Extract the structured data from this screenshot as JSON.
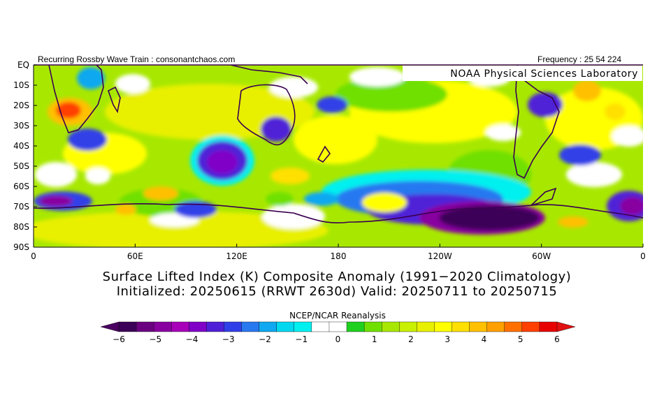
{
  "header": {
    "left": "Recurring Rossby Wave Train : consonantchaos.com",
    "right": "Frequency : 25 54 224",
    "credit": "NOAA Physical Sciences Laboratory"
  },
  "map": {
    "lat_labels": [
      "EQ",
      "10S",
      "20S",
      "30S",
      "40S",
      "50S",
      "60S",
      "70S",
      "80S",
      "90S"
    ],
    "lon_labels": [
      "0",
      "60E",
      "120E",
      "180",
      "120W",
      "60W",
      "0"
    ],
    "lat_range": [
      -90,
      0
    ],
    "lon_range": [
      0,
      360
    ]
  },
  "title": {
    "line1": "Surface Lifted Index (K) Composite Anomaly (1991−2020 Climatology)",
    "line2": "Initialized: 20250615 (RRWT 2630d) Valid: 20250711 to 20250715"
  },
  "colorbar": {
    "label": "NCEP/NCAR Reanalysis",
    "ticks": [
      "−6",
      "−5",
      "−4",
      "−3",
      "−2",
      "−1",
      "0",
      "1",
      "2",
      "3",
      "4",
      "5",
      "6"
    ],
    "colors": [
      "#3c0058",
      "#6a0080",
      "#8800a0",
      "#a800b8",
      "#8000c8",
      "#5020d8",
      "#3040e8",
      "#2878f0",
      "#10a8f0",
      "#00d8f0",
      "#00f0f0",
      "#ffffff",
      "#ffffff",
      "#20d020",
      "#70e000",
      "#a8e800",
      "#c8f000",
      "#e8f000",
      "#ffff00",
      "#ffe000",
      "#ffc000",
      "#ffa000",
      "#ff7000",
      "#ff4000",
      "#e80000"
    ],
    "arrow_left": "#4a0060",
    "arrow_right": "#e01010"
  }
}
